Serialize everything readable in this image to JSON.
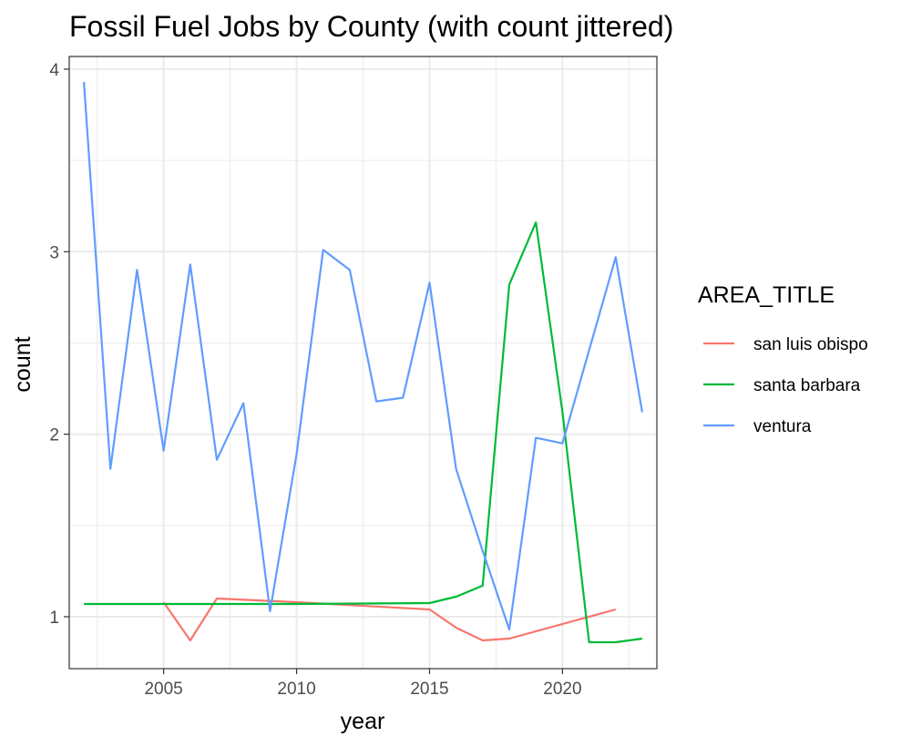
{
  "chart_data": {
    "type": "line",
    "title": "Fossil Fuel Jobs by County (with count jittered)",
    "xlabel": "year",
    "ylabel": "count",
    "xlim": [
      2001.45,
      2023.55
    ],
    "ylim": [
      0.7155,
      4.0695
    ],
    "x_ticks": [
      2005,
      2010,
      2015,
      2020
    ],
    "y_ticks": [
      1,
      2,
      3,
      4
    ],
    "x_minor_ticks": [
      2002.5,
      2007.5,
      2012.5,
      2017.5,
      2022.5
    ],
    "y_minor_ticks": [
      1.5,
      2.5,
      3.5
    ],
    "grid": true,
    "legend": {
      "title": "AREA_TITLE",
      "position": "right"
    },
    "series": [
      {
        "name": "san luis obispo",
        "color": "#F8766D",
        "x": [
          2005,
          2006,
          2007,
          2010,
          2015,
          2016,
          2017,
          2018,
          2022
        ],
        "y": [
          1.08,
          0.87,
          1.1,
          1.08,
          1.04,
          0.94,
          0.87,
          0.88,
          1.04
        ]
      },
      {
        "name": "santa barbara",
        "color": "#00BA38",
        "x": [
          2002,
          2005,
          2010,
          2015,
          2016,
          2017,
          2018,
          2019,
          2020,
          2021,
          2022,
          2023
        ],
        "y": [
          1.07,
          1.07,
          1.07,
          1.075,
          1.11,
          1.17,
          2.82,
          3.16,
          2.12,
          0.86,
          0.86,
          0.88
        ]
      },
      {
        "name": "ventura",
        "color": "#619CFF",
        "x": [
          2002,
          2003,
          2004,
          2005,
          2006,
          2007,
          2008,
          2009,
          2010,
          2011,
          2012,
          2013,
          2014,
          2015,
          2016,
          2017,
          2018,
          2019,
          2020,
          2022,
          2023
        ],
        "y": [
          3.93,
          1.81,
          2.9,
          1.91,
          2.93,
          1.86,
          2.17,
          1.03,
          1.89,
          3.01,
          2.9,
          2.18,
          2.2,
          2.83,
          1.81,
          1.36,
          0.93,
          1.98,
          1.95,
          2.97,
          2.12
        ]
      }
    ]
  }
}
